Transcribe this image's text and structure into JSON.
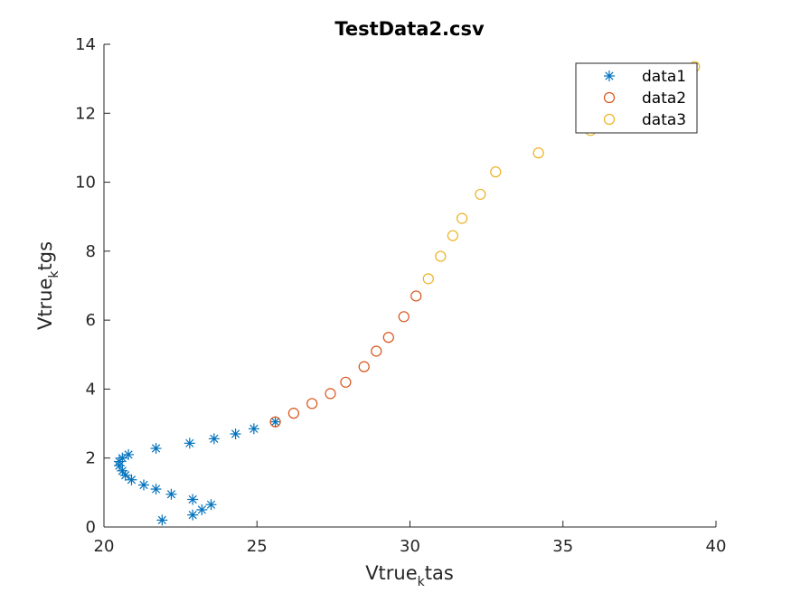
{
  "chart_data": {
    "type": "scatter",
    "title": "TestData2.csv",
    "xlabel": {
      "base": "Vtrue",
      "sub": "k",
      "rest": "tas"
    },
    "ylabel": {
      "base": "Vtrue",
      "sub": "k",
      "rest": "tgs"
    },
    "xlim": [
      20,
      40
    ],
    "ylim": [
      0,
      14
    ],
    "xticks": [
      "20",
      "25",
      "30",
      "35",
      "40"
    ],
    "yticks": [
      "0",
      "2",
      "4",
      "6",
      "8",
      "10",
      "12",
      "14"
    ],
    "grid": false,
    "legend_position": "top-right",
    "series": [
      {
        "name": "data1",
        "marker": "asterisk",
        "color": "#0072BD",
        "x": [
          21.9,
          22.9,
          23.2,
          23.5,
          22.9,
          22.2,
          21.7,
          21.3,
          20.9,
          20.7,
          20.6,
          20.5,
          20.5,
          20.6,
          20.8,
          21.7,
          22.8,
          23.6,
          24.3,
          24.9,
          25.6
        ],
        "y": [
          0.2,
          0.35,
          0.5,
          0.65,
          0.8,
          0.95,
          1.1,
          1.22,
          1.37,
          1.5,
          1.63,
          1.78,
          1.9,
          2.0,
          2.1,
          2.28,
          2.43,
          2.56,
          2.7,
          2.85,
          3.05
        ]
      },
      {
        "name": "data2",
        "marker": "circle",
        "color": "#D95319",
        "x": [
          25.6,
          26.2,
          26.8,
          27.4,
          27.9,
          28.5,
          28.9,
          29.3,
          29.8,
          30.2
        ],
        "y": [
          3.05,
          3.3,
          3.58,
          3.87,
          4.2,
          4.65,
          5.1,
          5.5,
          6.1,
          6.7
        ]
      },
      {
        "name": "data3",
        "marker": "circle",
        "color": "#EDB120",
        "x": [
          30.6,
          31.0,
          31.4,
          31.7,
          32.3,
          32.8,
          34.2,
          35.9,
          39.3
        ],
        "y": [
          7.2,
          7.85,
          8.45,
          8.95,
          9.65,
          10.3,
          10.85,
          11.5,
          13.35
        ]
      }
    ]
  }
}
